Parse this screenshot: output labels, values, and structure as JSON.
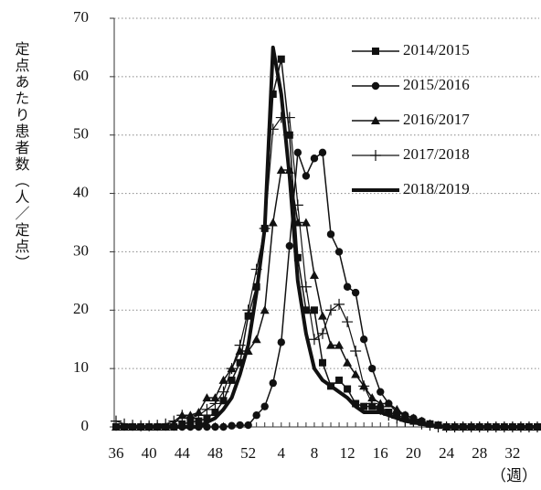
{
  "chart_data": {
    "type": "line",
    "y_label": "定点あたり患者数（人／定点）",
    "x_label": "（週）",
    "categories": [
      "36",
      null,
      null,
      null,
      "40",
      null,
      null,
      null,
      "44",
      null,
      null,
      null,
      "48",
      null,
      null,
      null,
      "52",
      null,
      null,
      null,
      "4",
      null,
      null,
      null,
      "8",
      null,
      null,
      null,
      "12",
      null,
      null,
      null,
      "16",
      null,
      null,
      null,
      "20",
      null,
      null,
      null,
      "24",
      null,
      null,
      null,
      "28",
      null,
      null,
      null,
      "32",
      null,
      null,
      null
    ],
    "ylim": [
      0,
      70
    ],
    "yticks": [
      0,
      10,
      20,
      30,
      40,
      50,
      60,
      70
    ],
    "grid": true,
    "legend": "upper right",
    "series": [
      {
        "name": "2014/2015",
        "color": "#111111",
        "marker": "square",
        "line_width": 1.5,
        "values": [
          0,
          0,
          0,
          0,
          0,
          0,
          0,
          0,
          0.5,
          0.8,
          1,
          1.5,
          2.5,
          4.5,
          8,
          11,
          19,
          24,
          34,
          57,
          63,
          50,
          29,
          20,
          20,
          11,
          7,
          8,
          6.5,
          4,
          3.5,
          3.5,
          3,
          2.5,
          2,
          1.5,
          1,
          0.8,
          0.5,
          0.3,
          0,
          0,
          0,
          0,
          0,
          0,
          0,
          0,
          0,
          0,
          0,
          0
        ]
      },
      {
        "name": "2015/2016",
        "color": "#111111",
        "marker": "circle",
        "line_width": 1.5,
        "values": [
          0,
          0,
          0,
          0,
          0,
          0,
          0,
          0,
          0,
          0,
          0,
          0,
          0,
          0,
          0.2,
          0.3,
          0.3,
          2,
          3.5,
          7.5,
          14.5,
          31,
          47,
          43,
          46,
          47,
          33,
          30,
          24,
          23,
          15,
          10,
          6,
          4,
          2.5,
          2,
          1.5,
          1,
          0.5,
          0.3,
          0,
          0,
          0,
          0,
          0,
          0,
          0,
          0,
          0,
          0,
          0,
          0
        ]
      },
      {
        "name": "2016/2017",
        "color": "#111111",
        "marker": "triangle",
        "line_width": 1.5,
        "values": [
          0,
          0,
          0,
          0,
          0,
          0,
          0,
          0.5,
          2,
          2,
          2.5,
          5,
          5,
          8,
          10,
          13,
          13,
          15,
          20,
          35,
          44,
          44,
          35,
          35,
          26,
          19,
          14,
          14,
          11,
          9,
          7,
          5,
          4,
          4,
          3,
          2,
          1.5,
          1,
          0.5,
          0.3,
          0,
          0,
          0,
          0,
          0,
          0,
          0,
          0,
          0,
          0,
          0,
          0
        ]
      },
      {
        "name": "2017/2018",
        "color": "#111111",
        "marker": "plus",
        "line_width": 1.2,
        "values": [
          1,
          0.5,
          0.3,
          0.2,
          0.2,
          0.3,
          0.5,
          1,
          2,
          1.5,
          2,
          3,
          4,
          6,
          10,
          14,
          20,
          27,
          34,
          51,
          53,
          53,
          38,
          24,
          15,
          16,
          20,
          21,
          18,
          13,
          7,
          4,
          3,
          2,
          1.5,
          1,
          1,
          0.5,
          0.3,
          0,
          0,
          0,
          0,
          0,
          0,
          0,
          0,
          0,
          0,
          0,
          0,
          0
        ]
      },
      {
        "name": "2018/2019",
        "color": "#111111",
        "marker": "none",
        "line_width": 4,
        "values": [
          0,
          0,
          0,
          0,
          0,
          0,
          0,
          0,
          0,
          0,
          0,
          0.8,
          1.5,
          3,
          5,
          9,
          14,
          23,
          34,
          65,
          57,
          43,
          25,
          16,
          10,
          8,
          7,
          6,
          5,
          3.5,
          2.5,
          2.5,
          2.5,
          2,
          1.5,
          1,
          0.8,
          0.5,
          0.3,
          0.2,
          0,
          0,
          0,
          0,
          0,
          0,
          0,
          0,
          0,
          0,
          0,
          0
        ]
      }
    ]
  }
}
